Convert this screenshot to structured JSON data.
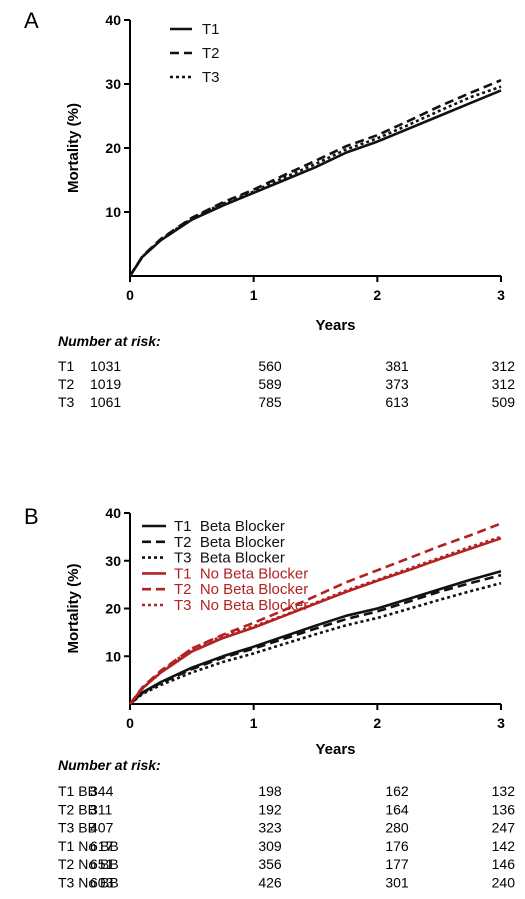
{
  "colors": {
    "black": "#111111",
    "red": "#b22222"
  },
  "panels": [
    {
      "letter": "A",
      "chart_data": {
        "type": "line",
        "xlabel": "Years",
        "ylabel": "Mortality (%)",
        "xlim": [
          0,
          3
        ],
        "ylim": [
          0,
          40
        ],
        "xticks": [
          "0",
          "1",
          "2",
          "3"
        ],
        "yticks": [
          "10",
          "20",
          "30",
          "40"
        ],
        "grid": false,
        "legend_position": "top-left",
        "series": [
          {
            "name": "T1",
            "color": "#111111",
            "dash": "solid",
            "x": [
              0,
              0.1,
              0.25,
              0.5,
              0.75,
              1.0,
              1.25,
              1.5,
              1.75,
              2.0,
              2.25,
              2.5,
              2.75,
              3.0
            ],
            "y": [
              0,
              3.0,
              5.6,
              8.8,
              11.0,
              13.0,
              15.0,
              17.0,
              19.3,
              21.0,
              23.0,
              25.0,
              27.0,
              29.0
            ]
          },
          {
            "name": "T2",
            "color": "#111111",
            "dash": "dashed",
            "x": [
              0,
              0.1,
              0.25,
              0.5,
              0.75,
              1.0,
              1.25,
              1.5,
              1.75,
              2.0,
              2.25,
              2.5,
              2.75,
              3.0
            ],
            "y": [
              0,
              3.1,
              5.8,
              9.1,
              11.5,
              13.5,
              15.8,
              18.0,
              20.3,
              22.0,
              24.2,
              26.5,
              28.6,
              30.6
            ]
          },
          {
            "name": "T3",
            "color": "#111111",
            "dash": "dotted",
            "x": [
              0,
              0.1,
              0.25,
              0.5,
              0.75,
              1.0,
              1.25,
              1.5,
              1.75,
              2.0,
              2.25,
              2.5,
              2.75,
              3.0
            ],
            "y": [
              0,
              3.0,
              5.7,
              9.0,
              11.3,
              13.2,
              15.4,
              17.5,
              19.8,
              21.5,
              23.6,
              25.8,
              27.9,
              29.6
            ]
          }
        ]
      },
      "risk_table": {
        "heading": "Number at risk:",
        "rows": [
          {
            "label": "T1",
            "values": [
              "1031",
              "560",
              "381",
              "312"
            ]
          },
          {
            "label": "T2",
            "values": [
              "1019",
              "589",
              "373",
              "312"
            ]
          },
          {
            "label": "T3",
            "values": [
              "1061",
              "785",
              "613",
              "509"
            ]
          }
        ]
      }
    },
    {
      "letter": "B",
      "chart_data": {
        "type": "line",
        "xlabel": "Years",
        "ylabel": "Mortality (%)",
        "xlim": [
          0,
          3
        ],
        "ylim": [
          0,
          40
        ],
        "xticks": [
          "0",
          "1",
          "2",
          "3"
        ],
        "yticks": [
          "10",
          "20",
          "30",
          "40"
        ],
        "grid": false,
        "legend_position": "top-left",
        "series": [
          {
            "name": "T1  Beta Blocker",
            "color": "#111111",
            "dash": "solid",
            "x": [
              0,
              0.1,
              0.25,
              0.5,
              0.75,
              1.0,
              1.25,
              1.5,
              1.75,
              2.0,
              2.25,
              2.5,
              2.75,
              3.0
            ],
            "y": [
              0,
              2.4,
              4.6,
              7.6,
              10.0,
              12.0,
              14.2,
              16.4,
              18.5,
              20.0,
              22.0,
              24.0,
              26.0,
              27.8
            ]
          },
          {
            "name": "T2  Beta Blocker",
            "color": "#111111",
            "dash": "dashed",
            "x": [
              0,
              0.1,
              0.25,
              0.5,
              0.75,
              1.0,
              1.25,
              1.5,
              1.75,
              2.0,
              2.25,
              2.5,
              2.75,
              3.0
            ],
            "y": [
              0,
              2.3,
              4.4,
              7.3,
              9.7,
              11.6,
              13.7,
              15.8,
              17.8,
              19.4,
              21.4,
              23.5,
              25.3,
              27.0
            ]
          },
          {
            "name": "T3  Beta Blocker",
            "color": "#111111",
            "dash": "dotted",
            "x": [
              0,
              0.1,
              0.25,
              0.5,
              0.75,
              1.0,
              1.25,
              1.5,
              1.75,
              2.0,
              2.25,
              2.5,
              2.75,
              3.0
            ],
            "y": [
              0,
              2.1,
              4.0,
              6.6,
              8.8,
              10.6,
              12.6,
              14.6,
              16.5,
              18.0,
              19.9,
              21.8,
              23.6,
              25.3
            ]
          },
          {
            "name": "T1  No Beta Blocker",
            "color": "#b22222",
            "dash": "solid",
            "x": [
              0,
              0.1,
              0.25,
              0.5,
              0.75,
              1.0,
              1.25,
              1.5,
              1.75,
              2.0,
              2.25,
              2.5,
              2.75,
              3.0
            ],
            "y": [
              0,
              3.3,
              6.6,
              11.0,
              13.8,
              16.0,
              18.5,
              21.0,
              23.5,
              25.8,
              28.0,
              30.3,
              32.5,
              34.7
            ]
          },
          {
            "name": "T2  No Beta Blocker",
            "color": "#b22222",
            "dash": "dashed",
            "x": [
              0,
              0.1,
              0.25,
              0.5,
              0.75,
              1.0,
              1.25,
              1.5,
              1.75,
              2.0,
              2.25,
              2.5,
              2.75,
              3.0
            ],
            "y": [
              0,
              3.5,
              7.0,
              11.6,
              14.5,
              17.0,
              19.7,
              22.6,
              25.5,
              28.0,
              30.5,
              33.0,
              35.3,
              37.8
            ]
          },
          {
            "name": "T3  No Beta Blocker",
            "color": "#b22222",
            "dash": "dotted",
            "x": [
              0,
              0.1,
              0.25,
              0.5,
              0.75,
              1.0,
              1.25,
              1.5,
              1.75,
              2.0,
              2.25,
              2.5,
              2.75,
              3.0
            ],
            "y": [
              0,
              3.2,
              6.8,
              11.6,
              14.2,
              16.3,
              18.6,
              21.2,
              23.8,
              26.0,
              28.3,
              30.6,
              32.9,
              35.0
            ]
          }
        ]
      },
      "risk_table": {
        "heading": "Number at risk:",
        "rows": [
          {
            "label": "T1 BB",
            "values": [
              "344",
              "198",
              "162",
              "132"
            ]
          },
          {
            "label": "T2 BB",
            "values": [
              "311",
              "192",
              "164",
              "136"
            ]
          },
          {
            "label": "T3 BB",
            "values": [
              "407",
              "323",
              "280",
              "247"
            ]
          },
          {
            "label": "T1 No BB",
            "values": [
              "617",
              "309",
              "176",
              "142"
            ]
          },
          {
            "label": "T2 No BB",
            "values": [
              "651",
              "356",
              "177",
              "146"
            ]
          },
          {
            "label": "T3 No BB",
            "values": [
              "603",
              "426",
              "301",
              "240"
            ]
          }
        ]
      }
    }
  ]
}
